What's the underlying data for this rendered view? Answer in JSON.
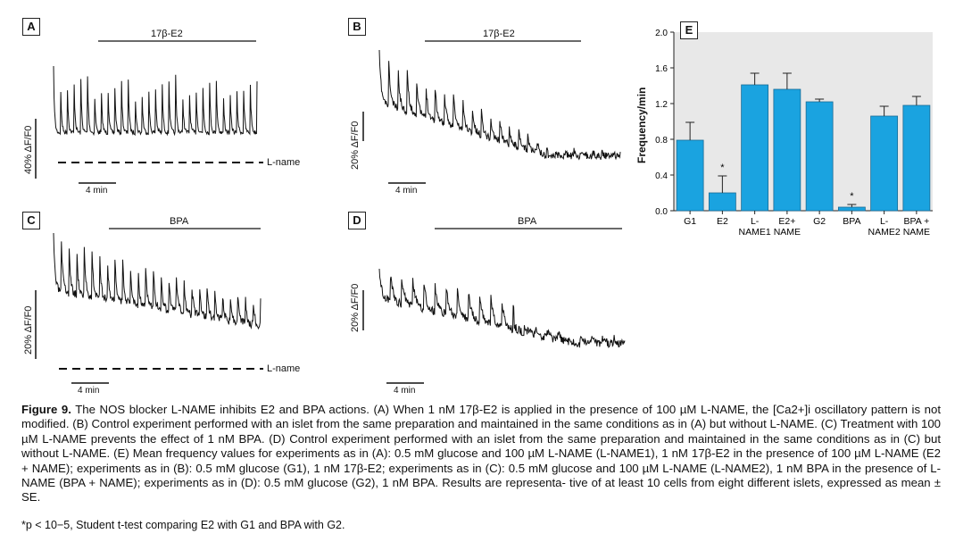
{
  "panels": {
    "A": {
      "letter": "A",
      "treatment": "17β-E2",
      "yscale": "40% ΔF/F0",
      "time": "4 min",
      "lname": "L-name"
    },
    "B": {
      "letter": "B",
      "treatment": "17β-E2",
      "yscale": "20% ΔF/F0",
      "time": "4 min"
    },
    "C": {
      "letter": "C",
      "treatment": "BPA",
      "yscale": "20% ΔF/F0",
      "time": "4 min",
      "lname": "L-name"
    },
    "D": {
      "letter": "D",
      "treatment": "BPA",
      "yscale": "20% ΔF/F0",
      "time": "4 min"
    },
    "E": {
      "letter": "E"
    }
  },
  "chart_data": {
    "type": "bar",
    "title": "",
    "ylabel": "Frequency/min",
    "ylim": [
      0,
      2.0
    ],
    "yticks": [
      "0.0",
      "0.4",
      "0.8",
      "1.2",
      "1.6",
      "2.0"
    ],
    "categories": [
      "G1",
      "E2",
      "L-NAME1",
      "E2+ NAME",
      "G2",
      "BPA",
      "L-NAME2",
      "BPA + NAME"
    ],
    "category_lines": [
      [
        "G1"
      ],
      [
        "E2"
      ],
      [
        "L-",
        "NAME1"
      ],
      [
        "E2+",
        "NAME"
      ],
      [
        "G2"
      ],
      [
        "BPA"
      ],
      [
        "L-",
        "NAME2"
      ],
      [
        "BPA +",
        "NAME"
      ]
    ],
    "values": [
      0.79,
      0.2,
      1.41,
      1.36,
      1.22,
      0.04,
      1.06,
      1.18
    ],
    "errors": [
      0.2,
      0.19,
      0.13,
      0.18,
      0.03,
      0.03,
      0.11,
      0.1
    ],
    "significant": [
      false,
      true,
      false,
      false,
      false,
      true,
      false,
      false
    ],
    "bar_color": "#1aa3e0"
  },
  "caption": {
    "label": "Figure 9.",
    "lines": [
      "The NOS blocker L-NAME inhibits E2 and BPA actions. (A) When 1 nM 17β-E2 is applied in the presence of 100 µM L-NAME, the [Ca2+]i oscillatory pattern",
      "is not modified. (B) Control experiment performed with an islet from the same preparation and maintained in the same conditions as in (A) but without L-NAME.",
      "(C) Treatment with 100 µM L-NAME prevents the effect of 1 nM BPA. (D) Control experiment performed with an islet from the same preparation and maintained in",
      "the same conditions as in (C) but without L-NAME. (E) Mean frequency values for experiments as in (A): 0.5 mM glucose and 100 µM L-NAME (L-NAME1), 1 nM",
      "17β-E2 in the presence of 100 µM L-NAME (E2 + NAME); experiments as in (B): 0.5 mM glucose (G1), 1 nM 17β-E2; experiments as in (C): 0.5 mM glucose and",
      "100 µM L-NAME (L-NAME2), 1 nM BPA in the presence of L-NAME (BPA + NAME); experiments as in (D): 0.5 mM glucose (G2), 1 nM BPA. Results are representa-",
      "tive of at least 10 cells from eight different islets, expressed as mean ± SE."
    ],
    "footnote": "*p < 10−5, Student t-test comparing E2 with G1 and BPA with G2."
  }
}
